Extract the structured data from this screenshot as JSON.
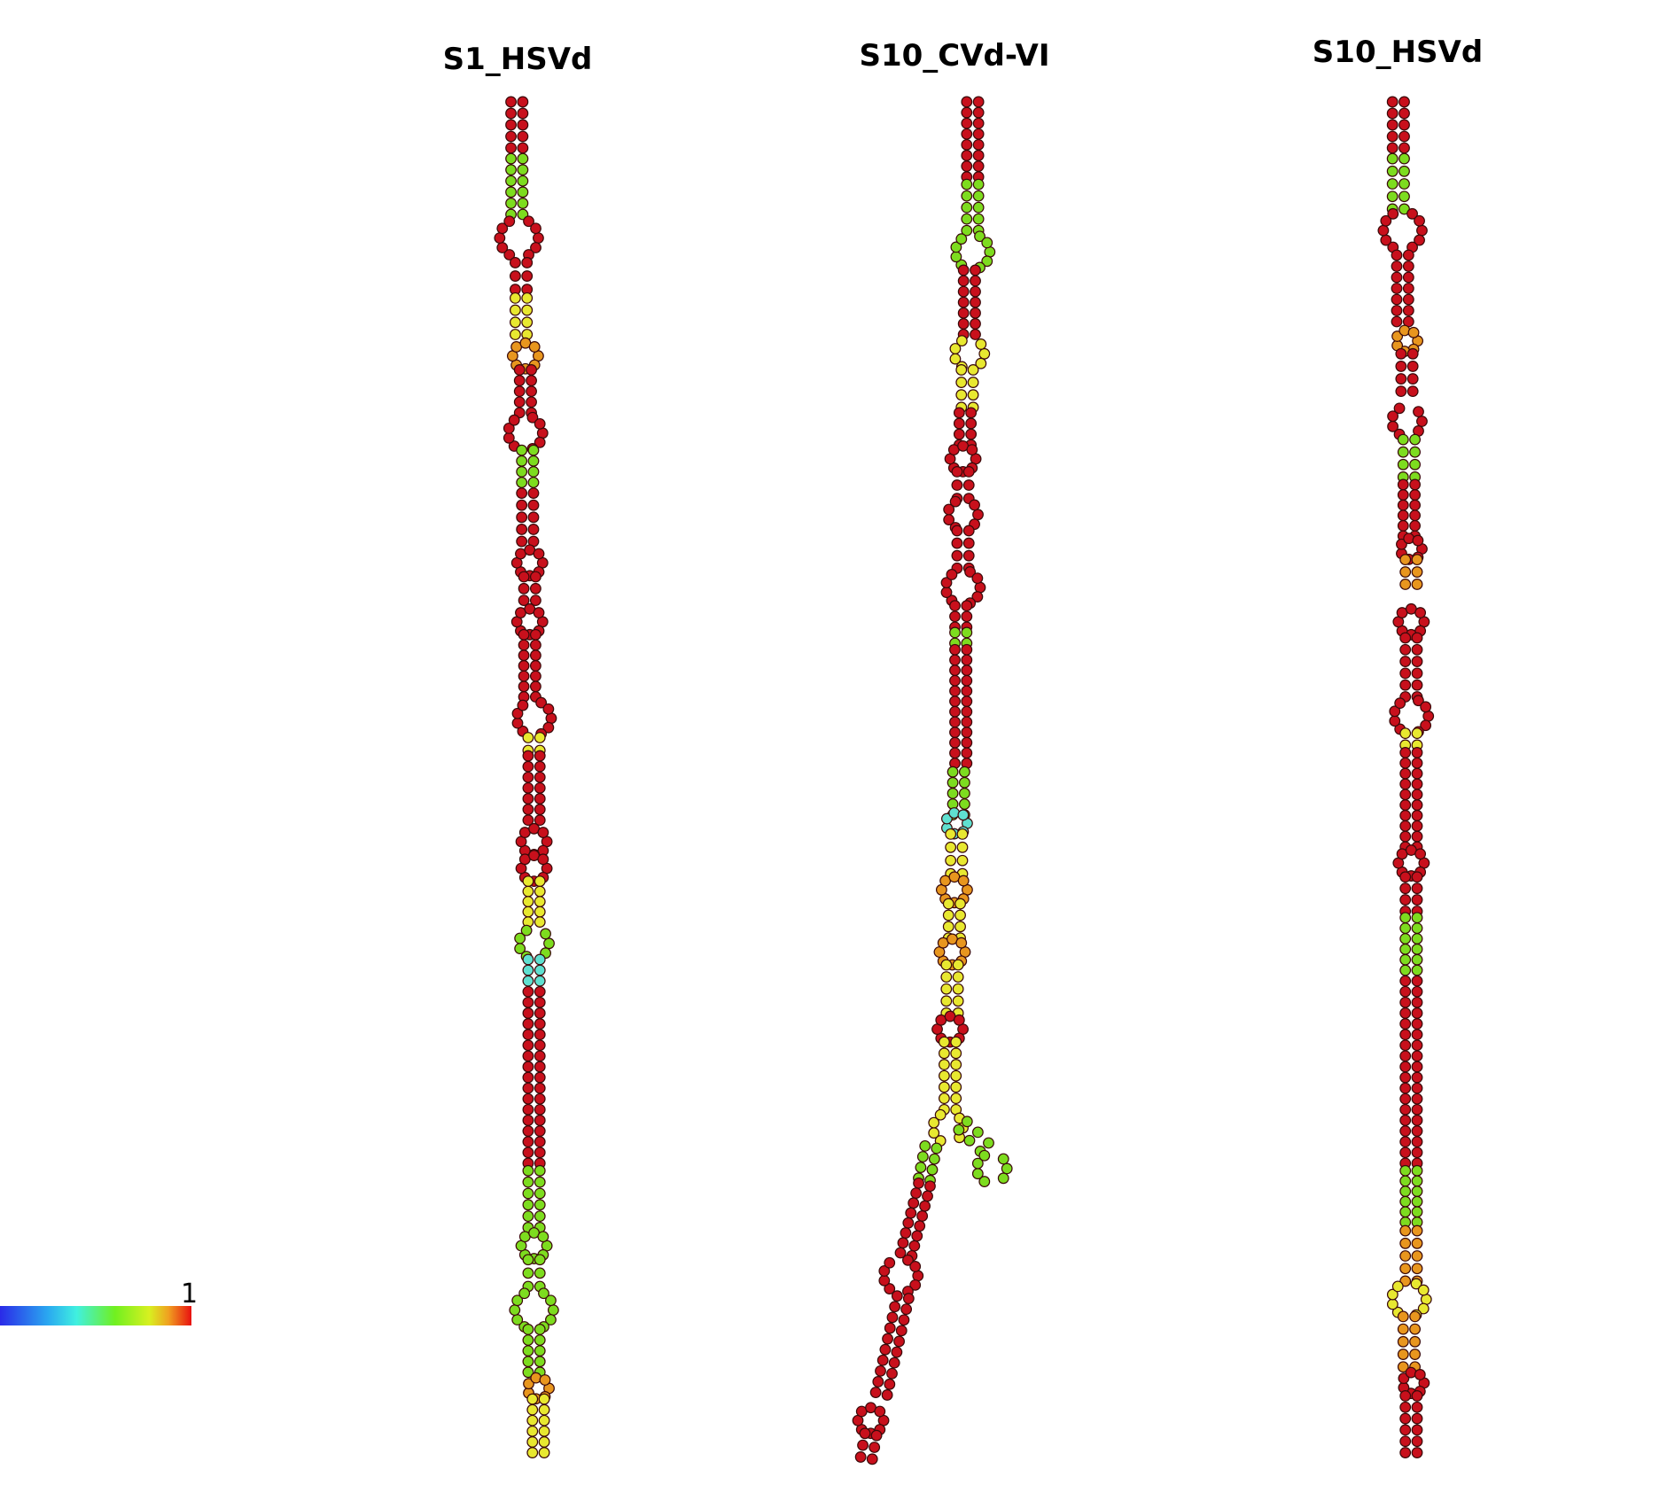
{
  "titles": [
    "S1_HSVd",
    "S10_CVd-VI",
    "S10_HSVd"
  ],
  "colorbar": {
    "max": 1
  }
}
